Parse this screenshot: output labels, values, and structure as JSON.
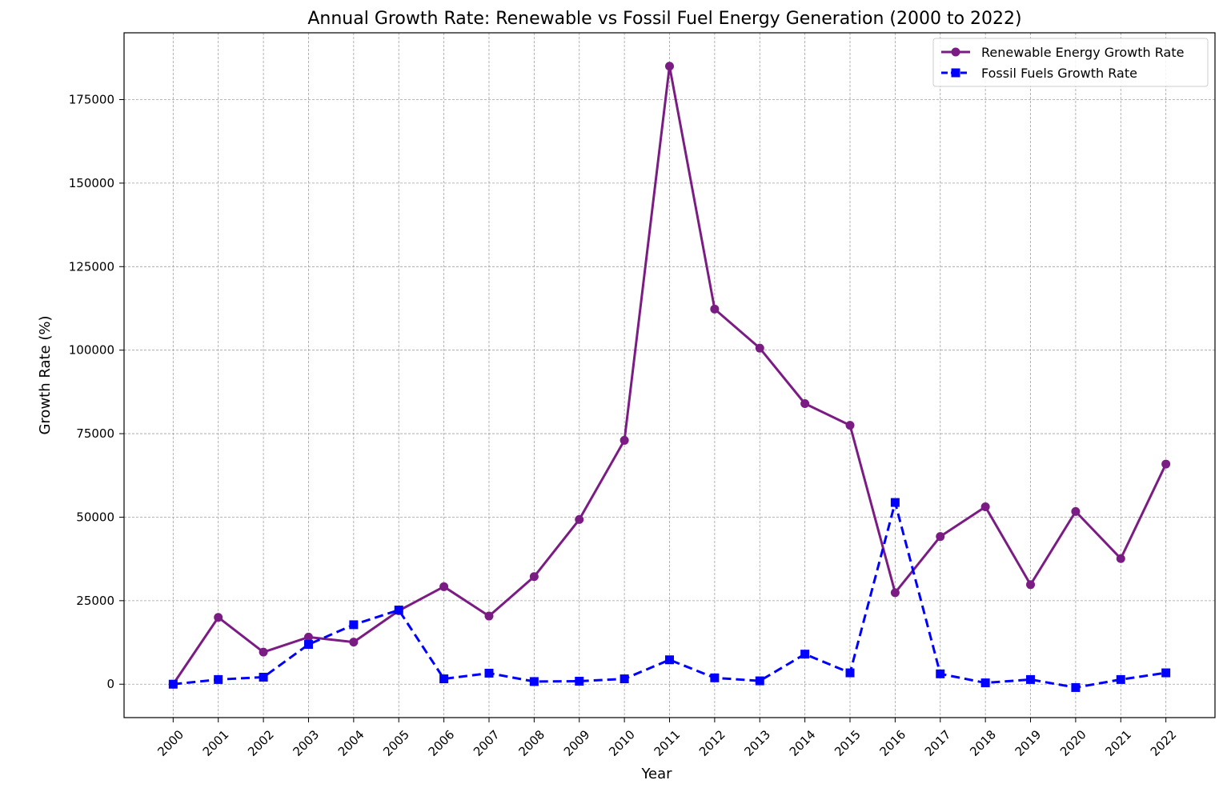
{
  "chart_data": {
    "type": "line",
    "title": "Annual Growth Rate: Renewable vs Fossil Fuel Energy Generation (2000 to 2022)",
    "xlabel": "Year",
    "ylabel": "Growth Rate (%)",
    "x": [
      "2000",
      "2001",
      "2002",
      "2003",
      "2004",
      "2005",
      "2006",
      "2007",
      "2008",
      "2009",
      "2010",
      "2011",
      "2012",
      "2013",
      "2014",
      "2015",
      "2016",
      "2017",
      "2018",
      "2019",
      "2020",
      "2021",
      "2022"
    ],
    "ylim": [
      -10000,
      195000
    ],
    "yticks": [
      0,
      25000,
      50000,
      75000,
      100000,
      125000,
      150000,
      175000
    ],
    "grid": true,
    "legend_position": "top-right",
    "series": [
      {
        "name": "Renewable Energy Growth Rate",
        "color": "#7B1C84",
        "linestyle": "solid",
        "marker": "circle",
        "values": [
          0,
          20000,
          9600,
          14100,
          12600,
          22000,
          29200,
          20400,
          32200,
          49300,
          73000,
          185000,
          112300,
          100600,
          84000,
          77500,
          27400,
          44200,
          53100,
          29800,
          51700,
          37600,
          65900
        ]
      },
      {
        "name": "Fossil Fuels Growth Rate",
        "color": "#0000FF",
        "linestyle": "dashed",
        "marker": "square",
        "values": [
          0,
          1400,
          2100,
          11900,
          17800,
          22200,
          1600,
          3300,
          800,
          900,
          1600,
          7300,
          1900,
          1000,
          9000,
          3400,
          54400,
          3100,
          400,
          1400,
          -1000,
          1400,
          3400
        ]
      }
    ]
  }
}
